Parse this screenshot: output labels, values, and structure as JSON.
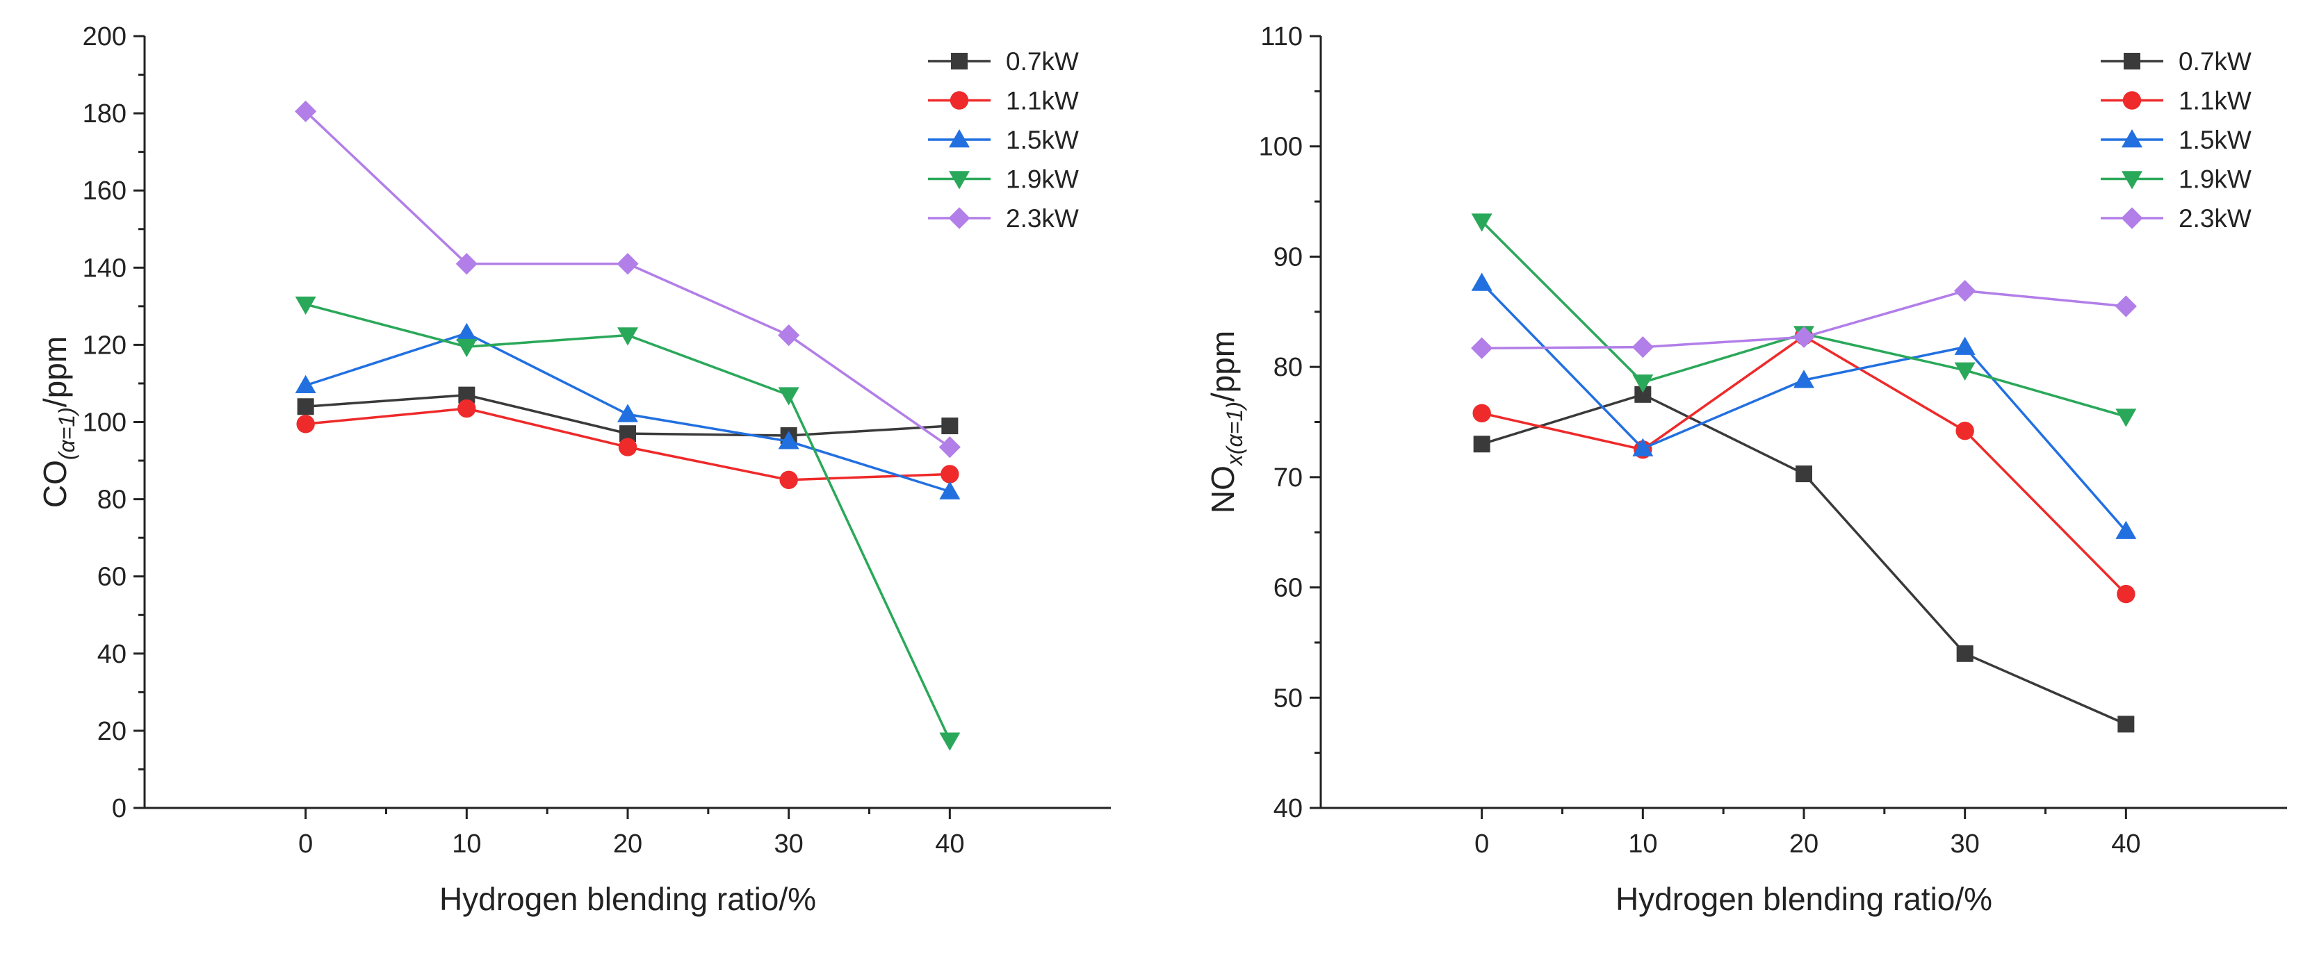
{
  "chart_data": [
    {
      "type": "line",
      "title": "",
      "xlabel": "Hydrogen blending ratio/%",
      "ylabel": {
        "main": "CO",
        "subscript": "(α=1)",
        "suffix": "/ppm"
      },
      "x": [
        0,
        10,
        20,
        30,
        40
      ],
      "xlim": [
        -10,
        50
      ],
      "ylim": [
        0,
        200
      ],
      "xticks": [
        0,
        10,
        20,
        30,
        40
      ],
      "yticks": [
        0,
        20,
        40,
        60,
        80,
        100,
        120,
        140,
        160,
        180,
        200
      ],
      "legend_position": "top-right",
      "series": [
        {
          "name": "0.7kW",
          "values": [
            104,
            107,
            97,
            96.5,
            99
          ],
          "color": "#3a3a3a",
          "marker": "square"
        },
        {
          "name": "1.1kW",
          "values": [
            99.5,
            103.5,
            93.5,
            85,
            86.5
          ],
          "color": "#ee2a2a",
          "marker": "circle"
        },
        {
          "name": "1.5kW",
          "values": [
            109.5,
            123,
            102,
            95,
            82
          ],
          "color": "#2270e0",
          "marker": "triangle-up"
        },
        {
          "name": "1.9kW",
          "values": [
            130.5,
            119.5,
            122.5,
            107,
            17.5
          ],
          "color": "#2aa85a",
          "marker": "triangle-down"
        },
        {
          "name": "2.3kW",
          "values": [
            180.5,
            141,
            141,
            122.5,
            93.5
          ],
          "color": "#b27ee8",
          "marker": "diamond"
        }
      ]
    },
    {
      "type": "line",
      "title": "",
      "xlabel": "Hydrogen blending ratio/%",
      "ylabel": {
        "main": "NO",
        "subscript": "x(α=1)",
        "suffix": "/ppm"
      },
      "x": [
        0,
        10,
        20,
        30,
        40
      ],
      "xlim": [
        -10,
        50
      ],
      "ylim": [
        40,
        110
      ],
      "xticks": [
        0,
        10,
        20,
        30,
        40
      ],
      "yticks": [
        40,
        50,
        60,
        70,
        80,
        90,
        100,
        110
      ],
      "legend_position": "top-right",
      "series": [
        {
          "name": "0.7kW",
          "values": [
            73,
            77.5,
            70.3,
            54,
            47.6
          ],
          "color": "#3a3a3a",
          "marker": "square"
        },
        {
          "name": "1.1kW",
          "values": [
            75.8,
            72.5,
            82.8,
            74.2,
            59.4
          ],
          "color": "#ee2a2a",
          "marker": "circle"
        },
        {
          "name": "1.5kW",
          "values": [
            87.6,
            72.6,
            78.8,
            81.8,
            65.1
          ],
          "color": "#2270e0",
          "marker": "triangle-up"
        },
        {
          "name": "1.9kW",
          "values": [
            93.2,
            78.6,
            83,
            79.7,
            75.5
          ],
          "color": "#2aa85a",
          "marker": "triangle-down"
        },
        {
          "name": "2.3kW",
          "values": [
            81.7,
            81.8,
            82.7,
            86.9,
            85.5
          ],
          "color": "#b27ee8",
          "marker": "diamond"
        }
      ]
    }
  ]
}
